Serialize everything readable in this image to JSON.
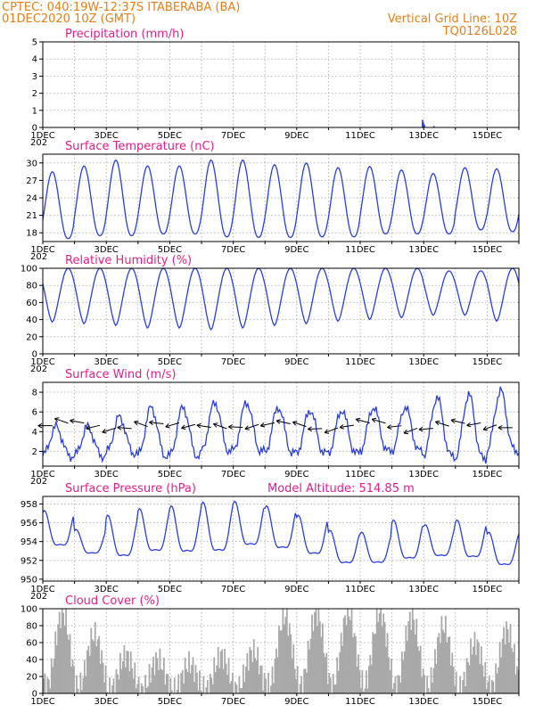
{
  "header": {
    "line1_left": "CPTEC:   040:19W-12:37S   ITABERABA (BA)",
    "line2_left": "01DEC2020 10Z (GMT)",
    "line2_right": "Vertical Grid Line: 10Z",
    "line3_right": "TQ0126L028"
  },
  "colors": {
    "header": "#e0801a",
    "title": "#e0208a",
    "line": "#2b3fd8",
    "cloud": "#a9a9a9"
  },
  "x_axis": {
    "labels": [
      "1DEC",
      "3DEC",
      "5DEC",
      "7DEC",
      "9DEC",
      "11DEC",
      "13DEC",
      "15DEC"
    ],
    "overlap_text": "202"
  },
  "panels": {
    "precip": {
      "title": "Precipitation (mm/h)",
      "ticks": [
        "0",
        "1",
        "2",
        "3",
        "4",
        "5"
      ],
      "chart_data": {
        "type": "bar",
        "ylim": [
          0,
          5
        ],
        "x_range_days": [
          0,
          15
        ],
        "events": [
          {
            "day": 11.94,
            "value": 0.45
          },
          {
            "day": 11.97,
            "value": 0.3
          },
          {
            "day": 12.0,
            "value": 0.15
          },
          {
            "day": 12.3,
            "value": 0.08
          },
          {
            "day": 0.1,
            "value": 0.03
          },
          {
            "day": 6.5,
            "value": 0.02
          }
        ]
      }
    },
    "temp": {
      "title": "Surface Temperature (nC)",
      "ticks": [
        "18",
        "21",
        "24",
        "27",
        "30"
      ],
      "chart_data": {
        "type": "line",
        "ylim": [
          16.5,
          31.5
        ],
        "daily_min": [
          17,
          17.5,
          17.5,
          17.8,
          17.8,
          17.3,
          17.2,
          17.2,
          17.3,
          17.3,
          17.8,
          17.8,
          17.8,
          18.5,
          18.2
        ],
        "daily_max": [
          28.5,
          29.5,
          30.5,
          29.5,
          29.5,
          30.5,
          30.5,
          29.7,
          30,
          29.2,
          29.4,
          28.8,
          28.2,
          29.2,
          29
        ]
      }
    },
    "rh": {
      "title": "Relative Humidity (%)",
      "ticks": [
        "0",
        "20",
        "40",
        "60",
        "80",
        "100"
      ],
      "chart_data": {
        "type": "line",
        "ylim": [
          0,
          100
        ],
        "daily_max": [
          100,
          100,
          100,
          100,
          100,
          100,
          100,
          100,
          100,
          100,
          100,
          100,
          97,
          97,
          100
        ],
        "daily_min": [
          37,
          35,
          33,
          30,
          30,
          28,
          30,
          33,
          35,
          38,
          40,
          42,
          45,
          45,
          38
        ]
      }
    },
    "wind": {
      "title": "Surface Wind (m/s)",
      "ticks": [
        "2",
        "4",
        "6",
        "8"
      ],
      "chart_data": {
        "type": "line",
        "ylim": [
          0.5,
          9
        ],
        "daily_min": [
          1.5,
          1.5,
          1.8,
          1.5,
          1.5,
          2,
          2,
          1.8,
          1.8,
          1.8,
          2,
          2,
          1.5,
          1.2,
          2
        ],
        "daily_max": [
          4.5,
          4.5,
          5.5,
          6.5,
          6.5,
          7,
          7,
          6.5,
          6.2,
          6.2,
          6.5,
          6.5,
          7.5,
          7.8,
          8.2
        ]
      }
    },
    "pres": {
      "title": "Surface Pressure (hPa)",
      "extra": "Model Altitude: 514.85 m",
      "ticks": [
        "950",
        "952",
        "954",
        "956",
        "958"
      ],
      "chart_data": {
        "type": "line",
        "ylim": [
          949.8,
          958.8
        ],
        "daily_max": [
          957.3,
          955.3,
          956.8,
          957.5,
          957.8,
          958.2,
          958.3,
          957.8,
          956.8,
          955.2,
          955,
          956.3,
          955.8,
          956.3,
          955
        ],
        "daily_min": [
          952.5,
          952,
          951.2,
          951.7,
          951.5,
          951.5,
          952.3,
          952,
          951.5,
          950.7,
          950.8,
          951,
          951.5,
          951.2,
          950.5
        ]
      }
    },
    "cloud": {
      "title": "Cloud Cover (%)",
      "ticks": [
        "0",
        "20",
        "40",
        "60",
        "80",
        "100"
      ],
      "chart_data": {
        "type": "bar",
        "ylim": [
          0,
          100
        ],
        "daily_level": [
          95,
          70,
          45,
          40,
          35,
          45,
          50,
          92,
          95,
          97,
          97,
          90,
          80,
          60,
          75
        ]
      }
    }
  }
}
